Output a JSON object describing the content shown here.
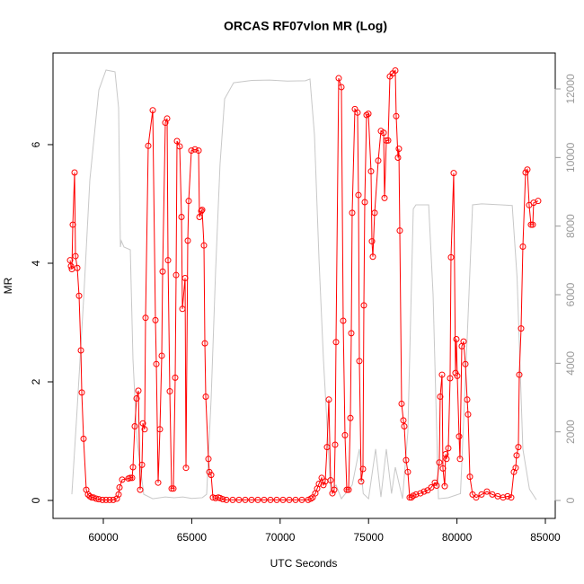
{
  "chart_data": {
    "type": "line",
    "title": "ORCAS RF07vlon MR (Log)",
    "x_label": "UTC Seconds",
    "y_label": "MR",
    "xlim": [
      57154,
      85559
    ],
    "xticks": [
      60000,
      65000,
      70000,
      75000,
      80000,
      85000
    ],
    "ylim": [
      -0.303,
      7.545
    ],
    "yticks": [
      0,
      2,
      4,
      6
    ],
    "y2lim": [
      -524,
      13048
    ],
    "y2ticks": [
      0,
      2000,
      4000,
      6000,
      8000,
      10000,
      12000
    ],
    "y2_color": "#999999",
    "series": [
      {
        "color": "#ff0000",
        "markers": true,
        "x": [
          58120,
          58171,
          58222,
          58273,
          58374,
          58425,
          58527,
          58628,
          58730,
          58781,
          58882,
          59035,
          59136,
          59238,
          59340,
          59441,
          59594,
          59746,
          59949,
          60152,
          60356,
          60559,
          60762,
          60864,
          60915,
          61067,
          61423,
          61524,
          61626,
          61677,
          61778,
          61880,
          61982,
          62083,
          62185,
          62236,
          62337,
          62388,
          62540,
          62795,
          62947,
          62998,
          63100,
          63201,
          63303,
          63354,
          63506,
          63608,
          63659,
          63760,
          63862,
          63963,
          64065,
          64116,
          64167,
          64319,
          64421,
          64472,
          64624,
          64675,
          64776,
          64827,
          64980,
          65183,
          65386,
          65437,
          65539,
          65589,
          65691,
          65742,
          65793,
          65945,
          65996,
          66098,
          66199,
          66352,
          66504,
          66606,
          66758,
          66961,
          67317,
          67672,
          68028,
          68384,
          68739,
          69095,
          69451,
          69806,
          70162,
          70518,
          70873,
          71229,
          71585,
          71738,
          71839,
          71991,
          72093,
          72194,
          72347,
          72448,
          72550,
          72652,
          72753,
          72855,
          72957,
          73058,
          73109,
          73160,
          73312,
          73465,
          73566,
          73668,
          73770,
          73871,
          73973,
          74024,
          74074,
          74227,
          74379,
          74430,
          74481,
          74583,
          74684,
          74735,
          74786,
          74887,
          74989,
          75141,
          75192,
          75243,
          75345,
          75548,
          75700,
          75853,
          75904,
          76005,
          76107,
          76209,
          76361,
          76513,
          76564,
          76665,
          76716,
          76767,
          76869,
          76970,
          77021,
          77122,
          77224,
          77326,
          77427,
          77529,
          77681,
          77935,
          78139,
          78342,
          78545,
          78749,
          78850,
          79002,
          79053,
          79155,
          79206,
          79307,
          79358,
          79409,
          79511,
          79612,
          79663,
          79816,
          79917,
          79968,
          80019,
          80121,
          80172,
          80273,
          80375,
          80477,
          80578,
          80629,
          80731,
          80883,
          81086,
          81391,
          81696,
          82001,
          82306,
          82610,
          82864,
          83068,
          83220,
          83322,
          83373,
          83474,
          83525,
          83627,
          83728,
          83881,
          83982,
          84084,
          84186,
          84287,
          84338,
          84592
        ],
        "values": [
          4.05,
          3.95,
          3.9,
          4.65,
          5.53,
          4.12,
          3.92,
          3.45,
          2.53,
          1.82,
          1.04,
          0.18,
          0.1,
          0.07,
          0.05,
          0.05,
          0.03,
          0.02,
          0.01,
          0.01,
          0.01,
          0.01,
          0.03,
          0.1,
          0.22,
          0.35,
          0.37,
          0.38,
          0.38,
          0.56,
          1.25,
          1.72,
          1.85,
          0.18,
          0.6,
          1.3,
          1.2,
          3.08,
          5.98,
          6.58,
          3.04,
          2.3,
          0.3,
          1.2,
          2.44,
          3.86,
          6.37,
          6.44,
          4.05,
          1.84,
          0.2,
          0.2,
          2.07,
          3.8,
          6.06,
          5.97,
          4.78,
          3.23,
          3.75,
          0.55,
          4.38,
          5.05,
          5.9,
          5.92,
          5.9,
          4.78,
          4.88,
          4.9,
          4.3,
          2.65,
          1.75,
          0.7,
          0.48,
          0.43,
          0.05,
          0.04,
          0.05,
          0.04,
          0.02,
          0.01,
          0.01,
          0.01,
          0.01,
          0.01,
          0.01,
          0.01,
          0.01,
          0.01,
          0.01,
          0.01,
          0.01,
          0.01,
          0.01,
          0.03,
          0.05,
          0.12,
          0.2,
          0.28,
          0.38,
          0.26,
          0.32,
          0.9,
          1.7,
          0.34,
          0.12,
          0.18,
          0.94,
          2.67,
          7.12,
          6.97,
          3.03,
          1.1,
          0.18,
          0.18,
          1.39,
          2.82,
          4.85,
          6.6,
          6.54,
          5.15,
          2.35,
          0.32,
          0.53,
          3.29,
          5.03,
          6.5,
          6.52,
          5.55,
          4.37,
          4.11,
          4.85,
          5.73,
          6.23,
          6.2,
          5.1,
          6.07,
          6.07,
          7.15,
          7.2,
          7.25,
          6.48,
          5.78,
          5.93,
          4.55,
          1.63,
          1.35,
          1.25,
          0.68,
          0.48,
          0.05,
          0.05,
          0.08,
          0.1,
          0.12,
          0.15,
          0.17,
          0.22,
          0.3,
          0.25,
          0.64,
          1.75,
          2.12,
          0.54,
          0.24,
          0.78,
          0.7,
          0.88,
          2.06,
          4.1,
          5.52,
          2.15,
          2.72,
          2.1,
          1.08,
          0.7,
          2.6,
          2.68,
          2.3,
          1.7,
          1.45,
          0.4,
          0.1,
          0.05,
          0.1,
          0.15,
          0.1,
          0.07,
          0.05,
          0.07,
          0.05,
          0.48,
          0.55,
          0.76,
          0.9,
          2.12,
          2.9,
          4.28,
          5.53,
          5.58,
          4.98,
          4.65,
          4.65,
          5.02,
          5.05
        ]
      },
      {
        "color": "#c8c8c8",
        "axis": "y2",
        "markers": false,
        "x": [
          58220,
          58500,
          58900,
          59238,
          59746,
          60152,
          60660,
          60864,
          60965,
          61016,
          61169,
          61525,
          61677,
          61900,
          62286,
          62795,
          63500,
          64000,
          64500,
          65000,
          65600,
          65843,
          66100,
          66352,
          66600,
          66860,
          67368,
          68400,
          69400,
          70400,
          71433,
          71687,
          71941,
          72200,
          72449,
          72856,
          73160,
          73465,
          74075,
          74480,
          74700,
          75000,
          75400,
          75700,
          76005,
          76300,
          76514,
          76921,
          77224,
          77530,
          77681,
          78400,
          78650,
          78954,
          79500,
          80200,
          80600,
          80883,
          81400,
          82500,
          83126,
          83400,
          83728,
          84100,
          84490
        ],
        "values": [
          180,
          2500,
          6000,
          9350,
          11970,
          12550,
          12500,
          11450,
          7390,
          7570,
          7390,
          7310,
          4110,
          1800,
          180,
          50,
          100,
          80,
          100,
          60,
          80,
          180,
          3000,
          6730,
          9800,
          11710,
          12180,
          12250,
          12260,
          12230,
          12240,
          12290,
          10660,
          7000,
          4110,
          310,
          450,
          50,
          450,
          1500,
          200,
          50,
          1500,
          100,
          1500,
          200,
          970,
          50,
          2000,
          8500,
          8620,
          8620,
          6000,
          50,
          80,
          200,
          5000,
          8620,
          8650,
          8620,
          8600,
          6500,
          1500,
          330,
          20
        ]
      }
    ]
  }
}
